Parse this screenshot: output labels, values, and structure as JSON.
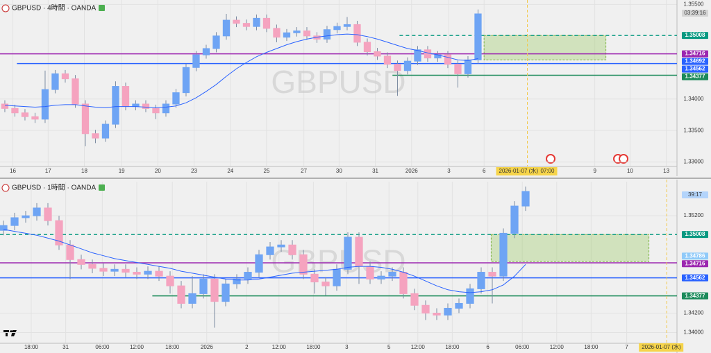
{
  "chart_data": [
    {
      "type": "candlestick",
      "title": "GBPUSD · 4時間 · OANDA",
      "watermark": "GBPUSD",
      "countdown": "03:39:16",
      "up_color": "#6ea4f4",
      "down_color": "#f5a3bf",
      "ma_color": "#2962ff",
      "grid": true,
      "open": [
        1.3392,
        1.3385,
        1.3378,
        1.3372,
        1.3368,
        1.3415,
        1.344,
        1.3432,
        1.3392,
        1.3345,
        1.3338,
        1.336,
        1.342,
        1.3388,
        1.3392,
        1.3385,
        1.3378,
        1.3392,
        1.341,
        1.345,
        1.347,
        1.348,
        1.35,
        1.3525,
        1.352,
        1.3515,
        1.3528,
        1.3512,
        1.3498,
        1.3505,
        1.3508,
        1.35,
        1.3495,
        1.351,
        1.3515,
        1.3518,
        1.349,
        1.3475,
        1.3468,
        1.3455,
        1.3445,
        1.346,
        1.3478,
        1.3465,
        1.347,
        1.3455,
        1.344,
        1.3462
      ],
      "high": [
        1.3398,
        1.3391,
        1.3384,
        1.3378,
        1.3445,
        1.3446,
        1.3446,
        1.3438,
        1.3398,
        1.3351,
        1.3366,
        1.3428,
        1.3426,
        1.3398,
        1.3398,
        1.3391,
        1.3398,
        1.3416,
        1.3456,
        1.3476,
        1.3486,
        1.3506,
        1.3535,
        1.3531,
        1.3526,
        1.3534,
        1.3534,
        1.3518,
        1.3511,
        1.3514,
        1.3514,
        1.3506,
        1.3516,
        1.3521,
        1.353,
        1.3524,
        1.3496,
        1.3481,
        1.3474,
        1.3461,
        1.3466,
        1.3484,
        1.3484,
        1.3476,
        1.3476,
        1.3461,
        1.3468,
        1.3542
      ],
      "low": [
        1.3379,
        1.3372,
        1.3366,
        1.3362,
        1.3362,
        1.3409,
        1.3426,
        1.3386,
        1.3325,
        1.333,
        1.3332,
        1.3354,
        1.3382,
        1.3382,
        1.3379,
        1.3368,
        1.3372,
        1.3386,
        1.3404,
        1.3444,
        1.3464,
        1.3474,
        1.3494,
        1.3514,
        1.3509,
        1.3509,
        1.3506,
        1.349,
        1.3492,
        1.3499,
        1.3494,
        1.3489,
        1.3489,
        1.3504,
        1.3509,
        1.3484,
        1.3469,
        1.3462,
        1.3449,
        1.3405,
        1.3439,
        1.3454,
        1.3459,
        1.3459,
        1.3449,
        1.3418,
        1.3434,
        1.3456
      ],
      "close": [
        1.3385,
        1.3378,
        1.3372,
        1.3368,
        1.3415,
        1.344,
        1.3432,
        1.3392,
        1.3345,
        1.3338,
        1.336,
        1.342,
        1.3388,
        1.3392,
        1.3385,
        1.3378,
        1.3392,
        1.341,
        1.345,
        1.347,
        1.348,
        1.35,
        1.3525,
        1.352,
        1.3515,
        1.3528,
        1.3512,
        1.3498,
        1.3505,
        1.3508,
        1.35,
        1.3495,
        1.351,
        1.3515,
        1.3518,
        1.349,
        1.3475,
        1.3468,
        1.3455,
        1.3445,
        1.346,
        1.3478,
        1.3465,
        1.347,
        1.3455,
        1.344,
        1.3462,
        1.3535
      ],
      "ma": [
        1.339,
        1.3389,
        1.3388,
        1.3387,
        1.3388,
        1.339,
        1.3391,
        1.3391,
        1.3389,
        1.3387,
        1.3386,
        1.3388,
        1.3388,
        1.3388,
        1.3387,
        1.3386,
        1.3387,
        1.3389,
        1.3394,
        1.3402,
        1.3412,
        1.3423,
        1.3436,
        1.3448,
        1.3458,
        1.3467,
        1.3474,
        1.348,
        1.3486,
        1.3491,
        1.3495,
        1.3498,
        1.35,
        1.3502,
        1.3503,
        1.3502,
        1.3499,
        1.3495,
        1.349,
        1.3485,
        1.348,
        1.3477,
        1.3473,
        1.347,
        1.3466,
        1.3462,
        1.3461,
        1.3464
      ],
      "xlim": [
        -0.48,
        66.76
      ],
      "xticks": [
        {
          "value": 0.8,
          "label": "16"
        },
        {
          "value": 4.3,
          "label": "17"
        },
        {
          "value": 7.9,
          "label": "18"
        },
        {
          "value": 11.6,
          "label": "19"
        },
        {
          "value": 15.2,
          "label": "20"
        },
        {
          "value": 18.8,
          "label": "23"
        },
        {
          "value": 22.4,
          "label": "24"
        },
        {
          "value": 26,
          "label": "25"
        },
        {
          "value": 29.7,
          "label": "27"
        },
        {
          "value": 33.2,
          "label": "30"
        },
        {
          "value": 36.8,
          "label": "31"
        },
        {
          "value": 40.4,
          "label": "2026"
        },
        {
          "value": 44.1,
          "label": "3"
        },
        {
          "value": 47.6,
          "label": "6"
        },
        {
          "value": 58.6,
          "label": "9"
        },
        {
          "value": 62.1,
          "label": "10"
        },
        {
          "value": 65.7,
          "label": "13"
        }
      ],
      "ylim": [
        1.3293,
        1.3557
      ],
      "yticks": [
        {
          "value": 1.33,
          "label": "1.33000"
        },
        {
          "value": 1.335,
          "label": "1.33500"
        },
        {
          "value": 1.34,
          "label": "1.34000"
        },
        {
          "value": 1.355,
          "label": "1.35500"
        }
      ],
      "levels": [
        {
          "value": 1.35008,
          "color": "#089981",
          "dashed": true,
          "line": true,
          "start": 39.2
        },
        {
          "value": 1.34716,
          "color": "#9c27b0",
          "dashed": false,
          "line": true
        },
        {
          "value": 1.34692,
          "color": "#2962ff",
          "dashed": false,
          "line": false
        },
        {
          "value": 1.34562,
          "color": "#2962ff",
          "dashed": false,
          "line": true,
          "start": 1.2
        },
        {
          "value": 1.34377,
          "color": "#1b8a5a",
          "dashed": false,
          "line": true,
          "start": 38.5
        }
      ],
      "zones": [
        {
          "top": 1.35008,
          "bottom": 1.3462,
          "start": 47.6,
          "end": 59.7
        }
      ],
      "cursor": {
        "x": 51.9,
        "date_label": "2026-01-07 (水)",
        "time_label": "07:00"
      }
    },
    {
      "type": "candlestick",
      "title": "GBPUSD · 1時間 · OANDA",
      "watermark": "GBPUSD",
      "countdown": "39:17",
      "up_color": "#6ea4f4",
      "down_color": "#f5a3bf",
      "ma_color": "#2962ff",
      "grid": true,
      "open": [
        1.3505,
        1.351,
        1.3518,
        1.352,
        1.3528,
        1.3515,
        1.349,
        1.3475,
        1.347,
        1.3466,
        1.3463,
        1.3465,
        1.3462,
        1.346,
        1.3463,
        1.3458,
        1.3448,
        1.343,
        1.344,
        1.3455,
        1.3432,
        1.345,
        1.3455,
        1.3462,
        1.348,
        1.3488,
        1.349,
        1.348,
        1.346,
        1.3452,
        1.3448,
        1.3465,
        1.3498,
        1.3468,
        1.3455,
        1.3458,
        1.3462,
        1.344,
        1.3428,
        1.342,
        1.3418,
        1.3425,
        1.343,
        1.3445,
        1.3462,
        1.3458,
        1.3502,
        1.353
      ],
      "high": [
        1.3515,
        1.3523,
        1.3525,
        1.3533,
        1.3533,
        1.352,
        1.3495,
        1.348,
        1.3475,
        1.3471,
        1.347,
        1.347,
        1.3467,
        1.3468,
        1.3468,
        1.3463,
        1.3453,
        1.3458,
        1.346,
        1.346,
        1.3455,
        1.346,
        1.3467,
        1.3485,
        1.3493,
        1.3495,
        1.3495,
        1.3485,
        1.3465,
        1.3457,
        1.347,
        1.3503,
        1.3503,
        1.3473,
        1.3463,
        1.3467,
        1.3467,
        1.3445,
        1.3433,
        1.3425,
        1.343,
        1.3435,
        1.345,
        1.3467,
        1.3467,
        1.3507,
        1.3535,
        1.355
      ],
      "low": [
        1.35,
        1.3505,
        1.3513,
        1.3515,
        1.351,
        1.3485,
        1.3455,
        1.3465,
        1.3461,
        1.3458,
        1.3458,
        1.3457,
        1.3455,
        1.3455,
        1.3453,
        1.344,
        1.3425,
        1.3425,
        1.3435,
        1.3405,
        1.3427,
        1.3445,
        1.345,
        1.3457,
        1.3475,
        1.3483,
        1.3475,
        1.3455,
        1.344,
        1.3438,
        1.3443,
        1.346,
        1.345,
        1.345,
        1.345,
        1.3453,
        1.3435,
        1.3423,
        1.3413,
        1.3413,
        1.3413,
        1.342,
        1.3425,
        1.344,
        1.343,
        1.3453,
        1.3497,
        1.3525
      ],
      "close": [
        1.351,
        1.3518,
        1.352,
        1.3528,
        1.3515,
        1.349,
        1.3475,
        1.347,
        1.3466,
        1.3463,
        1.3465,
        1.3462,
        1.346,
        1.3463,
        1.3458,
        1.3448,
        1.343,
        1.344,
        1.3455,
        1.3432,
        1.345,
        1.3455,
        1.3462,
        1.348,
        1.3488,
        1.349,
        1.348,
        1.346,
        1.3452,
        1.3448,
        1.3465,
        1.3498,
        1.3468,
        1.3455,
        1.3458,
        1.3462,
        1.344,
        1.3428,
        1.342,
        1.3418,
        1.3425,
        1.343,
        1.3445,
        1.3462,
        1.3458,
        1.3502,
        1.353,
        1.3545
      ],
      "ma": [
        1.3506,
        1.3504,
        1.3502,
        1.35,
        1.3497,
        1.3494,
        1.349,
        1.3486,
        1.3482,
        1.3479,
        1.3476,
        1.3474,
        1.3472,
        1.347,
        1.3468,
        1.3466,
        1.3463,
        1.3461,
        1.3459,
        1.3457,
        1.3455,
        1.3454,
        1.3454,
        1.3455,
        1.3457,
        1.3459,
        1.3461,
        1.3462,
        1.3463,
        1.3464,
        1.3465,
        1.3467,
        1.3468,
        1.3468,
        1.3467,
        1.3465,
        1.3462,
        1.3458,
        1.3453,
        1.3448,
        1.3444,
        1.3442,
        1.3441,
        1.3442,
        1.3444,
        1.3449,
        1.3458,
        1.347
      ],
      "xlim": [
        -0.3125,
        60.625
      ],
      "xticks": [
        {
          "value": 2.5,
          "label": "18:00"
        },
        {
          "value": 5.6,
          "label": "31"
        },
        {
          "value": 8.9,
          "label": "06:00"
        },
        {
          "value": 12,
          "label": "12:00"
        },
        {
          "value": 15.2,
          "label": "18:00"
        },
        {
          "value": 18.3,
          "label": "2026"
        },
        {
          "value": 21.9,
          "label": "2"
        },
        {
          "value": 24.8,
          "label": "12:00"
        },
        {
          "value": 27.9,
          "label": "18:00"
        },
        {
          "value": 30.9,
          "label": "3"
        },
        {
          "value": 34.7,
          "label": "5"
        },
        {
          "value": 37.3,
          "label": "12:00"
        },
        {
          "value": 40.4,
          "label": "18:00"
        },
        {
          "value": 43.6,
          "label": "6"
        },
        {
          "value": 46.7,
          "label": "06:00"
        },
        {
          "value": 49.8,
          "label": "12:00"
        },
        {
          "value": 52.9,
          "label": "18:00"
        },
        {
          "value": 56.1,
          "label": "7"
        }
      ],
      "ylim": [
        1.3389,
        1.3555
      ],
      "yticks": [
        {
          "value": 1.34,
          "label": "1.34000"
        },
        {
          "value": 1.342,
          "label": "1.34200"
        },
        {
          "value": 1.352,
          "label": "1.35200"
        }
      ],
      "levels": [
        {
          "value": 1.35008,
          "color": "#089981",
          "dashed": true,
          "line": true
        },
        {
          "value": 1.34786,
          "color": "#90caf9",
          "dashed": false,
          "line": false
        },
        {
          "value": 1.34716,
          "color": "#9c27b0",
          "dashed": false,
          "line": true
        },
        {
          "value": 1.34562,
          "color": "#2962ff",
          "dashed": false,
          "line": true
        },
        {
          "value": 1.34377,
          "color": "#1b8a5a",
          "dashed": false,
          "line": true,
          "start": 13.4
        }
      ],
      "zones": [
        {
          "top": 1.35008,
          "bottom": 1.3473,
          "start": 43.9,
          "end": 58.1
        }
      ],
      "cursor": {
        "x": 59.7,
        "date_label": "2026-01-07 (水)"
      }
    }
  ]
}
